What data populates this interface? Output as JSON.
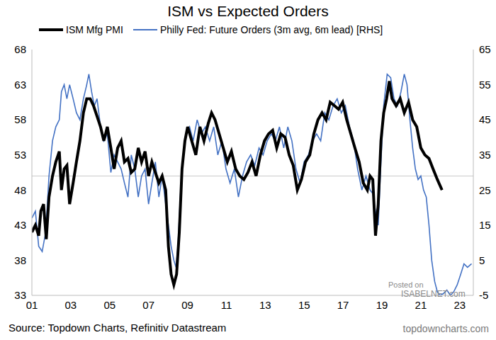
{
  "chart_data": {
    "type": "line",
    "title": "ISM vs Expected Orders",
    "source": "Source: Topdown Charts, Refinitiv Datastream",
    "credit": "topdowncharts.com",
    "annotations": [
      "Posted on",
      "ISABELNET.com"
    ],
    "xlim": [
      2001,
      2023.7
    ],
    "xticks": [
      {
        "value": 2001,
        "label": "01"
      },
      {
        "value": 2003,
        "label": "03"
      },
      {
        "value": 2005,
        "label": "05"
      },
      {
        "value": 2007,
        "label": "07"
      },
      {
        "value": 2009,
        "label": "09"
      },
      {
        "value": 2011,
        "label": "11"
      },
      {
        "value": 2013,
        "label": "13"
      },
      {
        "value": 2015,
        "label": "15"
      },
      {
        "value": 2017,
        "label": "17"
      },
      {
        "value": 2019,
        "label": "19"
      },
      {
        "value": 2021,
        "label": "21"
      },
      {
        "value": 2023,
        "label": "23"
      }
    ],
    "ylim": [
      33,
      68
    ],
    "yticks": [
      33,
      38,
      43,
      48,
      53,
      58,
      63,
      68
    ],
    "y2lim": [
      -5,
      65
    ],
    "y2ticks": [
      -5,
      5,
      15,
      25,
      35,
      45,
      55,
      65
    ],
    "reference_line": 50,
    "grid": false,
    "legend": "top",
    "series": [
      {
        "name": "ISM Mfg PMI",
        "color": "#000000",
        "x": [
          2001.0,
          2001.18,
          2001.35,
          2001.46,
          2001.6,
          2001.74,
          2001.88,
          2002.06,
          2002.23,
          2002.41,
          2002.52,
          2002.66,
          2002.8,
          2002.94,
          2003.12,
          2003.29,
          2003.47,
          2003.65,
          2003.82,
          2004.0,
          2004.17,
          2004.35,
          2004.53,
          2004.7,
          2004.88,
          2005.06,
          2005.23,
          2005.41,
          2005.59,
          2005.76,
          2005.94,
          2006.11,
          2006.29,
          2006.47,
          2006.64,
          2006.82,
          2007.0,
          2007.17,
          2007.35,
          2007.53,
          2007.7,
          2007.88,
          2008.02,
          2008.16,
          2008.3,
          2008.44,
          2008.58,
          2008.72,
          2008.87,
          2009.01,
          2009.22,
          2009.43,
          2009.64,
          2009.85,
          2010.07,
          2010.24,
          2010.42,
          2010.63,
          2010.84,
          2011.05,
          2011.26,
          2011.48,
          2011.69,
          2011.9,
          2012.11,
          2012.32,
          2012.53,
          2012.75,
          2012.96,
          2013.17,
          2013.38,
          2013.59,
          2013.8,
          2014.02,
          2014.23,
          2014.44,
          2014.65,
          2014.86,
          2015.07,
          2015.29,
          2015.5,
          2015.71,
          2015.92,
          2016.13,
          2016.34,
          2016.56,
          2016.77,
          2016.98,
          2017.19,
          2017.4,
          2017.61,
          2017.83,
          2018.04,
          2018.25,
          2018.39,
          2018.53,
          2018.67,
          2018.81,
          2018.95,
          2019.09,
          2019.24,
          2019.38,
          2019.52,
          2019.73,
          2019.94,
          2020.15,
          2020.37,
          2020.58,
          2020.79,
          2021.0,
          2021.21,
          2021.42,
          2021.63,
          2021.85,
          2022.09
        ],
        "values": [
          42,
          43,
          41.5,
          45,
          46,
          41,
          47,
          50,
          52,
          53.5,
          48,
          51,
          51.5,
          46,
          49,
          52,
          55,
          59,
          61,
          61,
          60,
          58.5,
          57,
          55,
          57,
          54,
          51,
          54,
          55,
          52,
          52.5,
          50.5,
          51,
          54,
          52,
          53.5,
          50,
          52,
          50.5,
          49,
          50,
          48,
          40,
          36,
          34.5,
          36,
          42,
          51,
          55,
          57,
          55,
          53,
          57,
          55,
          57.5,
          59,
          58,
          56,
          54,
          52,
          53.5,
          51,
          50,
          49.5,
          50.5,
          52,
          50,
          53,
          55,
          56,
          56.5,
          54,
          56,
          55.5,
          53,
          51.5,
          48,
          49.5,
          52,
          53,
          56,
          58,
          59,
          58,
          60.5,
          60,
          59.5,
          60.5,
          58,
          56,
          54,
          52,
          49,
          48,
          50,
          49.5,
          41.5,
          46,
          55,
          59,
          61,
          63.5,
          61,
          60,
          61,
          59,
          60.5,
          58,
          57,
          54,
          53,
          52.5,
          51,
          49.5,
          48
        ]
      },
      {
        "name": "Philly Fed: Future Orders (3m avg, 6m lead) [RHS]",
        "color": "#4472c4",
        "axis": "y2",
        "x": [
          2001.0,
          2001.18,
          2001.35,
          2001.53,
          2001.71,
          2001.88,
          2002.06,
          2002.23,
          2002.41,
          2002.52,
          2002.66,
          2002.8,
          2002.94,
          2003.12,
          2003.29,
          2003.47,
          2003.65,
          2003.82,
          2003.93,
          2004.07,
          2004.21,
          2004.35,
          2004.53,
          2004.7,
          2004.88,
          2005.06,
          2005.23,
          2005.41,
          2005.59,
          2005.76,
          2005.94,
          2006.11,
          2006.29,
          2006.47,
          2006.64,
          2006.82,
          2007.0,
          2007.17,
          2007.35,
          2007.53,
          2007.7,
          2007.88,
          2008.02,
          2008.16,
          2008.3,
          2008.41,
          2008.51,
          2008.65,
          2008.8,
          2008.94,
          2009.11,
          2009.29,
          2009.5,
          2009.71,
          2009.92,
          2010.14,
          2010.35,
          2010.56,
          2010.77,
          2010.98,
          2011.19,
          2011.41,
          2011.62,
          2011.83,
          2012.04,
          2012.25,
          2012.46,
          2012.68,
          2012.89,
          2013.1,
          2013.31,
          2013.52,
          2013.73,
          2013.95,
          2014.16,
          2014.37,
          2014.58,
          2014.79,
          2015.0,
          2015.22,
          2015.43,
          2015.64,
          2015.85,
          2016.06,
          2016.27,
          2016.49,
          2016.7,
          2016.91,
          2017.12,
          2017.33,
          2017.54,
          2017.75,
          2017.97,
          2018.18,
          2018.39,
          2018.53,
          2018.67,
          2018.81,
          2018.95,
          2019.09,
          2019.27,
          2019.45,
          2019.62,
          2019.8,
          2019.98,
          2020.15,
          2020.29,
          2020.44,
          2020.58,
          2020.72,
          2020.86,
          2021.0,
          2021.14,
          2021.28,
          2021.42,
          2021.56,
          2021.71,
          2021.85,
          2021.99,
          2022.16,
          2022.34,
          2022.52,
          2022.69,
          2022.87,
          2023.05,
          2023.22,
          2023.4,
          2023.61
        ],
        "values": [
          17,
          19,
          9,
          7.5,
          13,
          29,
          39,
          43,
          45,
          53,
          55,
          51,
          55,
          51,
          47,
          45,
          51,
          55,
          58,
          53,
          49,
          51,
          43,
          39,
          41,
          30,
          35,
          33,
          31,
          27,
          23,
          35,
          31,
          23,
          29,
          31,
          21,
          27,
          33,
          23,
          29,
          21,
          15,
          9,
          5,
          3,
          9,
          25,
          35,
          41,
          43,
          39,
          45,
          41,
          43,
          39,
          43,
          35,
          39,
          31,
          27,
          31,
          23,
          29,
          33,
          35,
          32,
          37,
          35,
          39,
          41,
          39,
          43,
          37,
          43,
          39,
          31,
          27,
          33,
          35,
          39,
          41,
          39,
          47,
          45,
          49,
          51,
          47,
          49,
          43,
          39,
          31,
          25,
          29,
          25,
          24,
          19,
          15,
          33,
          49,
          58,
          57,
          51,
          49,
          53,
          58,
          55,
          45,
          37,
          31,
          28,
          29,
          25,
          23,
          15,
          5,
          -1,
          -4,
          -5,
          -4.5,
          -3.5,
          -5,
          -4,
          -2,
          1,
          4,
          3,
          4
        ]
      }
    ]
  }
}
